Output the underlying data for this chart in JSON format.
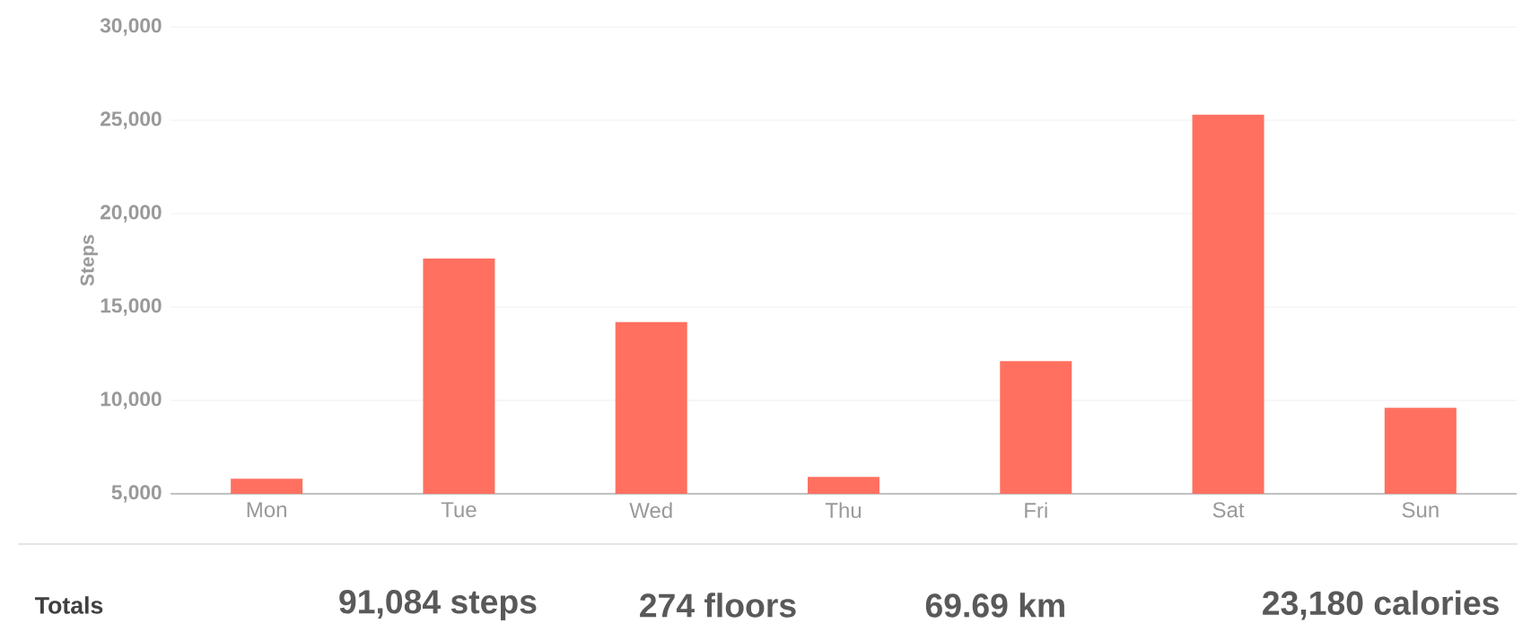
{
  "chart_data": {
    "type": "bar",
    "ylabel": "Steps",
    "categories": [
      "Mon",
      "Tue",
      "Wed",
      "Thu",
      "Fri",
      "Sat",
      "Sun"
    ],
    "values": [
      5800,
      17600,
      14200,
      5900,
      12100,
      25300,
      9600
    ],
    "color": "#ff7060",
    "ylim": [
      5000,
      30000
    ],
    "yticks": [
      {
        "value": 5000,
        "label": "5,000"
      },
      {
        "value": 10000,
        "label": "10,000"
      },
      {
        "value": 15000,
        "label": "15,000"
      },
      {
        "value": 20000,
        "label": "20,000"
      },
      {
        "value": 25000,
        "label": "25,000"
      },
      {
        "value": 30000,
        "label": "30,000"
      }
    ],
    "grid": "y",
    "annotations": [
      "Totals",
      "91,084 steps",
      "274 floors",
      "69.69 km",
      "23,180 calories"
    ]
  }
}
